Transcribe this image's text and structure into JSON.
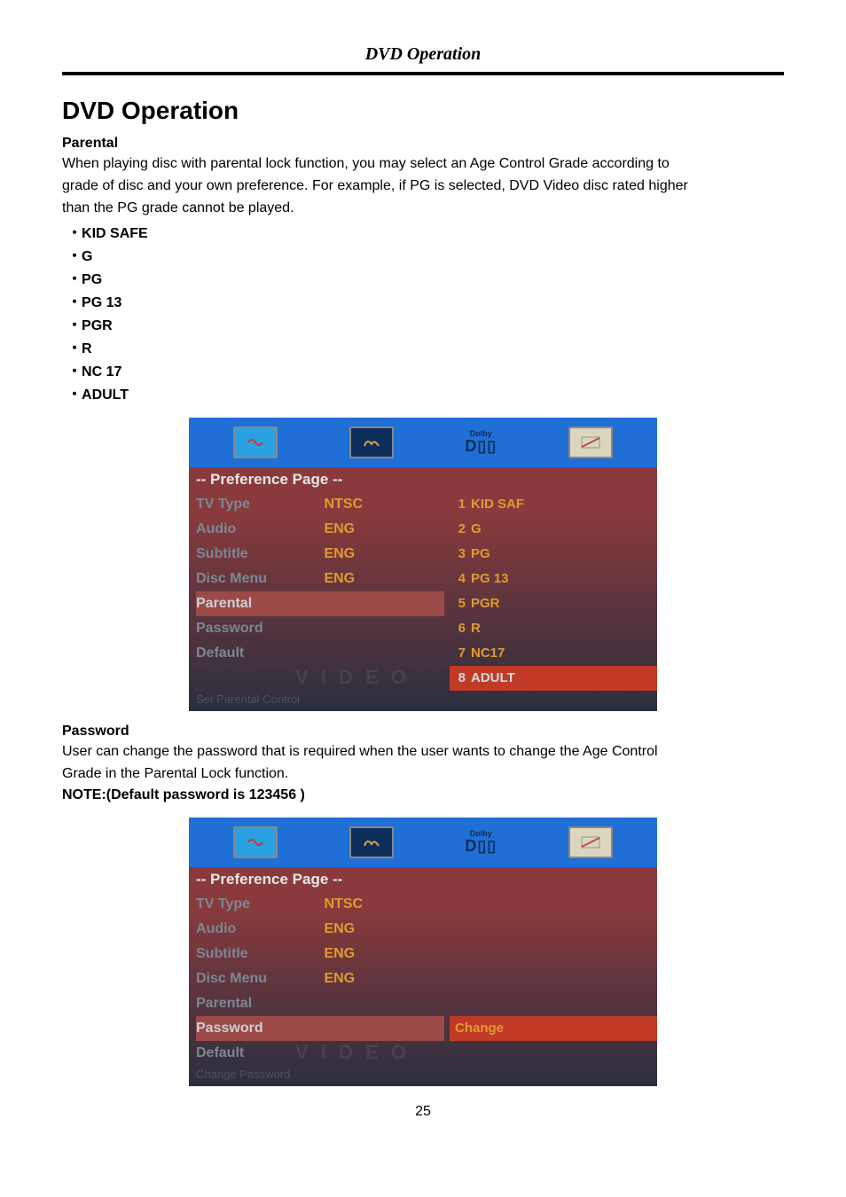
{
  "header": {
    "title": "DVD Operation"
  },
  "main_title": "DVD Operation",
  "parental": {
    "heading": "Parental",
    "body_l1": "When playing disc with parental lock function, you may select an Age Control Grade according to",
    "body_l2": "grade of disc and your own preference. For example, if PG is selected, DVD Video disc rated higher",
    "body_l3": " than the PG grade cannot be played.",
    "bullets": [
      "KID SAFE",
      "G",
      "PG",
      "PG 13",
      "PGR",
      "R",
      "NC 17",
      "ADULT"
    ]
  },
  "password": {
    "heading": "Password",
    "body_l1": "User can change the password that is required when the user wants to change the Age Control",
    "body_l2": "Grade in the Parental Lock function.",
    "note": "NOTE:(Default password is 123456 )"
  },
  "page_number": "25",
  "shot1": {
    "topbar_bg": "#1f6fd6",
    "body_grad_top": "#8a3a3c",
    "body_grad_bot": "#2a2f3f",
    "pref_label": "-- Preference Page --",
    "pref_color": "#e8e8e8",
    "label_color": "#7b8894",
    "val_color": "#e09a2f",
    "sel_label_color": "#c9cfd6",
    "sel_bar_bg": "#9c4a48",
    "opt_highlight_bg": "#c13a26",
    "opt_color": "#e09a2f",
    "opt_highlight_color": "#d7d9dc",
    "hint": "Set Parental Control",
    "hint_color": "#6f7a86",
    "watermark_color": "#6b7380",
    "dolby_label": "Dolby",
    "dolby_dd": "D▯",
    "rows": [
      {
        "label": "TV Type",
        "val": "NTSC"
      },
      {
        "label": "Audio",
        "val": "ENG"
      },
      {
        "label": "Subtitle",
        "val": "ENG"
      },
      {
        "label": "Disc Menu",
        "val": "ENG"
      },
      {
        "label": "Parental",
        "val": "",
        "selected": true
      },
      {
        "label": "Password",
        "val": ""
      },
      {
        "label": "Default",
        "val": ""
      }
    ],
    "options": [
      {
        "n": "1",
        "t": "KID SAF"
      },
      {
        "n": "2",
        "t": "G"
      },
      {
        "n": "3",
        "t": "PG"
      },
      {
        "n": "4",
        "t": "PG 13"
      },
      {
        "n": "5",
        "t": "PGR"
      },
      {
        "n": "6",
        "t": "R"
      },
      {
        "n": "7",
        "t": "NC17"
      },
      {
        "n": "8",
        "t": "ADULT",
        "hl": true
      }
    ]
  },
  "shot2": {
    "topbar_bg": "#1f6fd6",
    "body_grad_top": "#8a3a3c",
    "body_grad_bot": "#2a2f3f",
    "pref_label": "-- Preference Page --",
    "pref_color": "#e8e8e8",
    "label_color": "#7b8894",
    "val_color": "#e09a2f",
    "sel_label_color": "#c9cfd6",
    "sel_bar_bg": "#9c4a48",
    "opt_highlight_bg": "#c13a26",
    "opt_color": "#e09a2f",
    "hint": "Change Password",
    "hint_color": "#6f7a86",
    "watermark_color": "#6b7380",
    "dolby_label": "Dolby",
    "dolby_dd": "D▯",
    "rows": [
      {
        "label": "TV Type",
        "val": "NTSC"
      },
      {
        "label": "Audio",
        "val": "ENG"
      },
      {
        "label": "Subtitle",
        "val": "ENG"
      },
      {
        "label": "Disc Menu",
        "val": "ENG"
      },
      {
        "label": "Parental",
        "val": ""
      },
      {
        "label": "Password",
        "val": "",
        "selected": true
      },
      {
        "label": "Default",
        "val": ""
      }
    ],
    "right_single": {
      "t": "Change",
      "hl": true
    }
  }
}
